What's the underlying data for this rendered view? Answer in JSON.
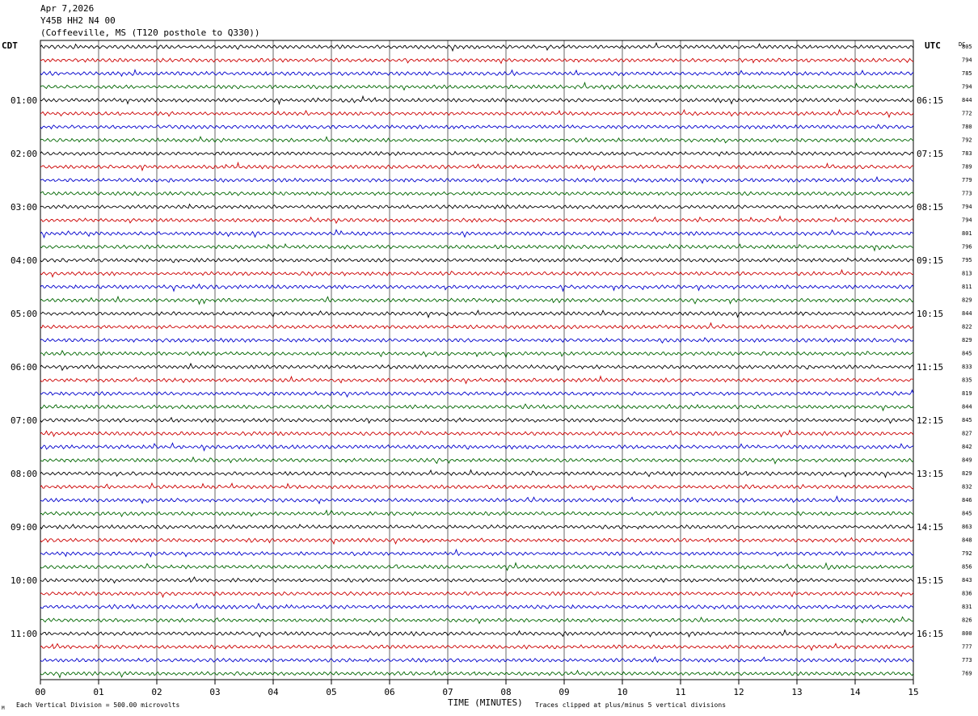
{
  "header": {
    "date": "Apr 7,2026",
    "station": "Y45B HH2 N4 00",
    "location": "(Coffeeville, MS (T120 posthole to Q330))"
  },
  "left_tz": "CDT",
  "right_tz": "UTC",
  "dc_label": "DC",
  "footer": {
    "scale_note": "Each Vertical Division =  500.00 microvolts",
    "xlabel": "TIME (MINUTES)",
    "clip_note": "Traces clipped at plus/minus 5 vertical divisions",
    "corner_mark": "M"
  },
  "colors": {
    "trace_cycle": [
      "#000000",
      "#cc0000",
      "#0000cc",
      "#006600"
    ],
    "grid": "#000000"
  },
  "chart_data": {
    "type": "line",
    "xlabel": "TIME (MINUTES)",
    "xlim": [
      0,
      15
    ],
    "x_ticks": [
      "00",
      "01",
      "02",
      "03",
      "04",
      "05",
      "06",
      "07",
      "08",
      "09",
      "10",
      "11",
      "12",
      "13",
      "14",
      "15"
    ],
    "left_hour_labels": [
      "01:00",
      "02:00",
      "03:00",
      "04:00",
      "05:00",
      "06:00",
      "07:00",
      "08:00",
      "09:00",
      "10:00",
      "11:00"
    ],
    "right_hour_labels": [
      "06:15",
      "07:15",
      "08:15",
      "09:15",
      "10:15",
      "11:15",
      "12:15",
      "13:15",
      "14:15",
      "15:15",
      "16:15"
    ],
    "dc_offsets": [
      805,
      794,
      785,
      794,
      844,
      772,
      780,
      792,
      783,
      789,
      779,
      773,
      794,
      794,
      801,
      796,
      795,
      813,
      811,
      829,
      844,
      822,
      829,
      845,
      833,
      835,
      819,
      844,
      845,
      827,
      842,
      849,
      829,
      832,
      846,
      845,
      863,
      848,
      792,
      856,
      843,
      836,
      831,
      826,
      800,
      777,
      773,
      769
    ]
  }
}
